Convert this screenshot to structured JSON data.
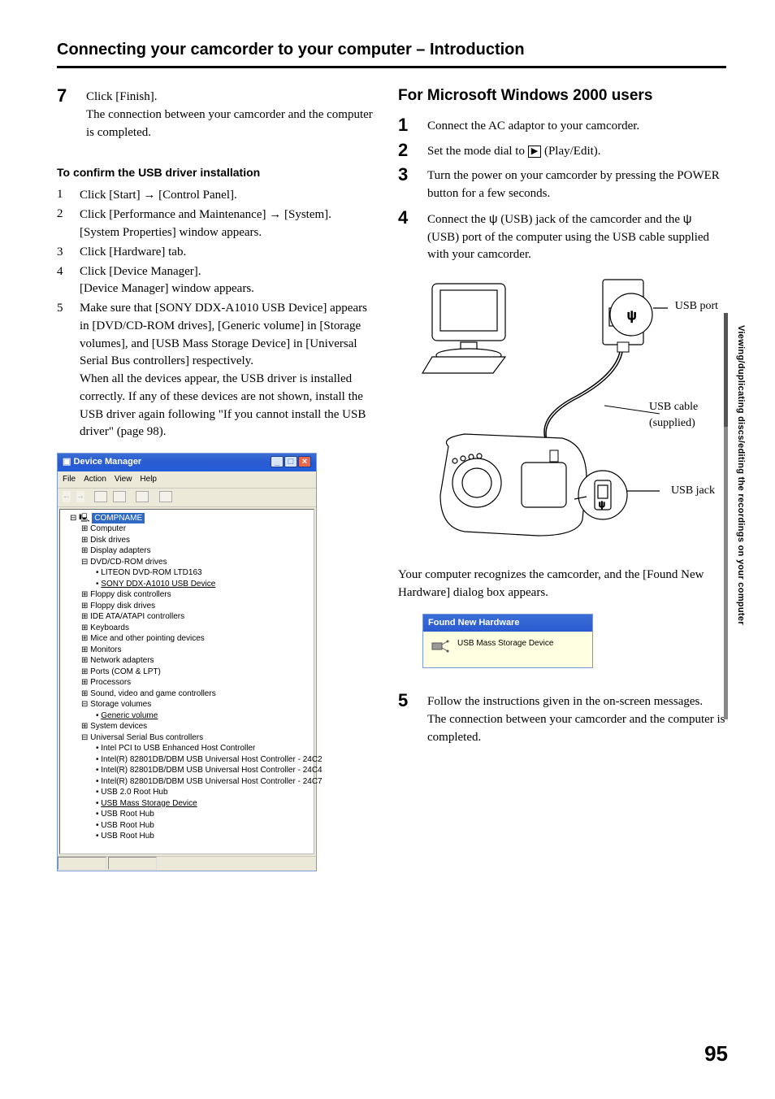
{
  "page": {
    "header": "Connecting your camcorder to your computer – Introduction",
    "number": "95",
    "side_text": "Viewing/duplicating discs/editing the recordings on your computer"
  },
  "left": {
    "step7": {
      "num": "7",
      "line1": "Click [Finish].",
      "line2": "The connection between your camcorder and the computer is completed."
    },
    "subhead": "To confirm the USB driver installation",
    "substeps": [
      {
        "n": "1",
        "t": "Click [Start] → [Control Panel]."
      },
      {
        "n": "2",
        "t": "Click [Performance and Maintenance] → [System].\n[System Properties] window appears."
      },
      {
        "n": "3",
        "t": "Click [Hardware] tab."
      },
      {
        "n": "4",
        "t": "Click [Device Manager].\n[Device Manager] window appears."
      },
      {
        "n": "5",
        "t": "Make sure that [SONY DDX-A1010 USB Device] appears in [DVD/CD-ROM drives], [Generic volume] in [Storage volumes], and [USB Mass Storage Device] in [Universal Serial Bus controllers] respectively.\nWhen all the devices appear, the USB driver is installed correctly. If any of these devices are not shown, install the USB driver again following \"If you cannot install the USB driver\" (page 98)."
      }
    ],
    "dm": {
      "title": "Device Manager",
      "menu": [
        "File",
        "Action",
        "View",
        "Help"
      ],
      "root": "COMPNAME",
      "tree": [
        {
          "lvl": 2,
          "exp": "+",
          "label": "Computer"
        },
        {
          "lvl": 2,
          "exp": "+",
          "label": "Disk drives"
        },
        {
          "lvl": 2,
          "exp": "+",
          "label": "Display adapters"
        },
        {
          "lvl": 2,
          "exp": "-",
          "label": "DVD/CD-ROM drives"
        },
        {
          "lvl": 3,
          "label": "LITEON DVD-ROM LTD163"
        },
        {
          "lvl": 3,
          "label": "SONY DDX-A1010 USB Device",
          "u": true
        },
        {
          "lvl": 2,
          "exp": "+",
          "label": "Floppy disk controllers"
        },
        {
          "lvl": 2,
          "exp": "+",
          "label": "Floppy disk drives"
        },
        {
          "lvl": 2,
          "exp": "+",
          "label": "IDE ATA/ATAPI controllers"
        },
        {
          "lvl": 2,
          "exp": "+",
          "label": "Keyboards"
        },
        {
          "lvl": 2,
          "exp": "+",
          "label": "Mice and other pointing devices"
        },
        {
          "lvl": 2,
          "exp": "+",
          "label": "Monitors"
        },
        {
          "lvl": 2,
          "exp": "+",
          "label": "Network adapters"
        },
        {
          "lvl": 2,
          "exp": "+",
          "label": "Ports (COM & LPT)"
        },
        {
          "lvl": 2,
          "exp": "+",
          "label": "Processors"
        },
        {
          "lvl": 2,
          "exp": "+",
          "label": "Sound, video and game controllers"
        },
        {
          "lvl": 2,
          "exp": "-",
          "label": "Storage volumes"
        },
        {
          "lvl": 3,
          "label": "Generic volume",
          "u": true
        },
        {
          "lvl": 2,
          "exp": "+",
          "label": "System devices"
        },
        {
          "lvl": 2,
          "exp": "-",
          "label": "Universal Serial Bus controllers"
        },
        {
          "lvl": 3,
          "label": "Intel PCI to USB Enhanced Host Controller"
        },
        {
          "lvl": 3,
          "label": "Intel(R) 82801DB/DBM USB Universal Host Controller - 24C2"
        },
        {
          "lvl": 3,
          "label": "Intel(R) 82801DB/DBM USB Universal Host Controller - 24C4"
        },
        {
          "lvl": 3,
          "label": "Intel(R) 82801DB/DBM USB Universal Host Controller - 24C7"
        },
        {
          "lvl": 3,
          "label": "USB 2.0 Root Hub"
        },
        {
          "lvl": 3,
          "label": "USB Mass Storage Device",
          "u": true
        },
        {
          "lvl": 3,
          "label": "USB Root Hub"
        },
        {
          "lvl": 3,
          "label": "USB Root Hub"
        },
        {
          "lvl": 3,
          "label": "USB Root Hub"
        }
      ]
    }
  },
  "right": {
    "heading": "For Microsoft Windows 2000 users",
    "steps": [
      {
        "n": "1",
        "t": "Connect the AC adaptor to your camcorder."
      },
      {
        "n": "2",
        "html": "Set the mode dial to <span class='playicon'>▶</span> (Play/Edit)."
      },
      {
        "n": "3",
        "t": "Turn the power on your camcorder by pressing the POWER button for a few seconds."
      },
      {
        "n": "4",
        "html": "Connect the <span class='usbglyph'>ψ</span> (USB) jack of the camcorder and the <span class='usbglyph'>ψ</span> (USB) port of the computer using the USB cable supplied with your camcorder."
      }
    ],
    "diagram_labels": {
      "usb_port": "USB port",
      "usb_cable": "USB cable (supplied)",
      "usb_jack": "USB jack"
    },
    "caption": "Your computer recognizes the camcorder, and the [Found New Hardware] dialog box appears.",
    "fnh": {
      "title": "Found New Hardware",
      "body": "USB Mass Storage Device"
    },
    "step5": {
      "n": "5",
      "t": "Follow the instructions given in the on-screen messages.\nThe connection between your camcorder and the computer is completed."
    }
  },
  "colors": {
    "titlebar_start": "#3b6ed5",
    "titlebar_end": "#2a5ad1",
    "win_bg": "#ece9d8",
    "balloon_bg": "#ffffe1",
    "tree_sel": "#316ac5"
  }
}
